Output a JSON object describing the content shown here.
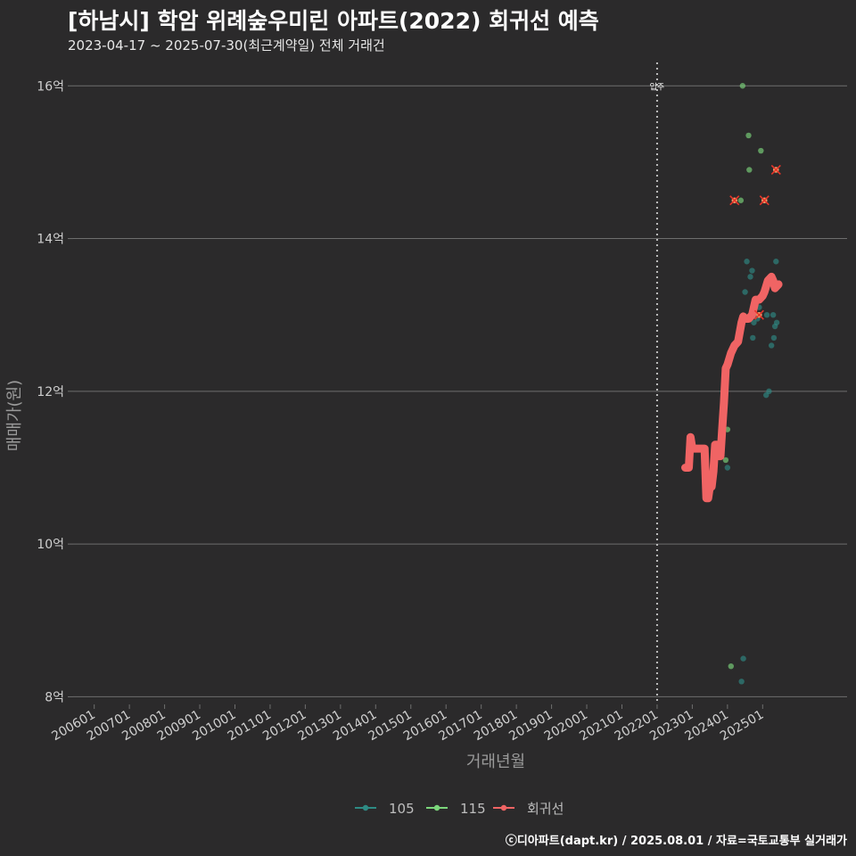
{
  "title": "[하남시] 학암 위례숲우미린 아파트(2022) 회귀선 예측",
  "subtitle": "2023-04-17 ~ 2025-07-30(최근계약일) 전체 거래건",
  "footer": "ⓒ디아파트(dapt.kr) / 2025.08.01 / 자료=국토교통부 실거래가",
  "colors": {
    "background": "#2b2a2b",
    "grid": "#6e6e6e",
    "axis_text": "#cfcfcf",
    "series_105": "#2e8b84",
    "series_115": "#7bd67b",
    "regression": "#f06464",
    "cancel_marker": "#e8352a"
  },
  "chart_data": {
    "type": "scatter",
    "xlabel": "거래년월",
    "ylabel": "매매가(원)",
    "xlim": [
      2005.4,
      2027.4
    ],
    "ylim": [
      7.9,
      16.4
    ],
    "y_ticks": [
      8,
      10,
      12,
      14,
      16
    ],
    "y_tick_labels": [
      "8억",
      "10억",
      "12억",
      "14억",
      "16억"
    ],
    "x_tick_labels": [
      "200601",
      "200701",
      "200801",
      "200901",
      "201001",
      "201101",
      "201201",
      "201301",
      "201401",
      "201501",
      "201601",
      "201701",
      "201801",
      "201901",
      "202001",
      "202101",
      "202201",
      "202301",
      "202401",
      "202501"
    ],
    "move_in": {
      "x": 2022.0,
      "label": "입주"
    },
    "legend": [
      {
        "name": "105",
        "color": "#2e8b84"
      },
      {
        "name": "115",
        "color": "#7bd67b"
      },
      {
        "name": "회귀선",
        "color": "#f06464"
      }
    ],
    "series": [
      {
        "name": "105",
        "points": [
          [
            2023.9,
            11.82
          ],
          [
            2024.0,
            11.0
          ],
          [
            2024.4,
            8.2
          ],
          [
            2024.45,
            8.5
          ],
          [
            2024.5,
            13.3
          ],
          [
            2024.55,
            13.7
          ],
          [
            2024.65,
            13.5
          ],
          [
            2024.7,
            13.58
          ],
          [
            2024.72,
            12.7
          ],
          [
            2024.75,
            12.9
          ],
          [
            2024.85,
            12.95
          ],
          [
            2024.9,
            13.1
          ],
          [
            2025.1,
            11.95
          ],
          [
            2025.12,
            13.0
          ],
          [
            2025.18,
            12.0
          ],
          [
            2025.25,
            12.6
          ],
          [
            2025.3,
            13.0
          ],
          [
            2025.32,
            12.7
          ],
          [
            2025.35,
            12.85
          ],
          [
            2025.38,
            13.7
          ],
          [
            2025.4,
            12.9
          ],
          [
            2025.45,
            13.4
          ]
        ]
      },
      {
        "name": "115",
        "points": [
          [
            2023.95,
            11.1
          ],
          [
            2024.0,
            11.5
          ],
          [
            2024.1,
            8.4
          ],
          [
            2024.38,
            14.5
          ],
          [
            2024.43,
            16.0
          ],
          [
            2024.6,
            15.35
          ],
          [
            2024.62,
            14.9
          ],
          [
            2024.95,
            15.15
          ],
          [
            2025.05,
            14.5
          ],
          [
            2025.38,
            14.9
          ]
        ]
      }
    ],
    "cancelled": [
      [
        2024.2,
        14.5
      ],
      [
        2024.9,
        13.0
      ],
      [
        2025.05,
        14.5
      ],
      [
        2025.38,
        14.9
      ]
    ],
    "regression": [
      [
        2022.8,
        11.0
      ],
      [
        2022.9,
        11.0
      ],
      [
        2022.95,
        11.4
      ],
      [
        2023.0,
        11.25
      ],
      [
        2023.2,
        11.25
      ],
      [
        2023.35,
        11.25
      ],
      [
        2023.4,
        10.6
      ],
      [
        2023.45,
        10.6
      ],
      [
        2023.5,
        10.75
      ],
      [
        2023.55,
        10.75
      ],
      [
        2023.6,
        10.95
      ],
      [
        2023.65,
        11.3
      ],
      [
        2023.7,
        11.3
      ],
      [
        2023.75,
        11.15
      ],
      [
        2023.8,
        11.15
      ],
      [
        2023.85,
        11.5
      ],
      [
        2023.9,
        11.85
      ],
      [
        2023.95,
        12.3
      ],
      [
        2024.0,
        12.35
      ],
      [
        2024.1,
        12.5
      ],
      [
        2024.2,
        12.6
      ],
      [
        2024.3,
        12.65
      ],
      [
        2024.4,
        12.9
      ],
      [
        2024.45,
        12.98
      ],
      [
        2024.5,
        12.95
      ],
      [
        2024.6,
        12.95
      ],
      [
        2024.7,
        13.0
      ],
      [
        2024.8,
        13.2
      ],
      [
        2024.9,
        13.2
      ],
      [
        2025.0,
        13.25
      ],
      [
        2025.05,
        13.3
      ],
      [
        2025.15,
        13.45
      ],
      [
        2025.25,
        13.5
      ],
      [
        2025.3,
        13.45
      ],
      [
        2025.35,
        13.35
      ],
      [
        2025.45,
        13.4
      ]
    ]
  }
}
